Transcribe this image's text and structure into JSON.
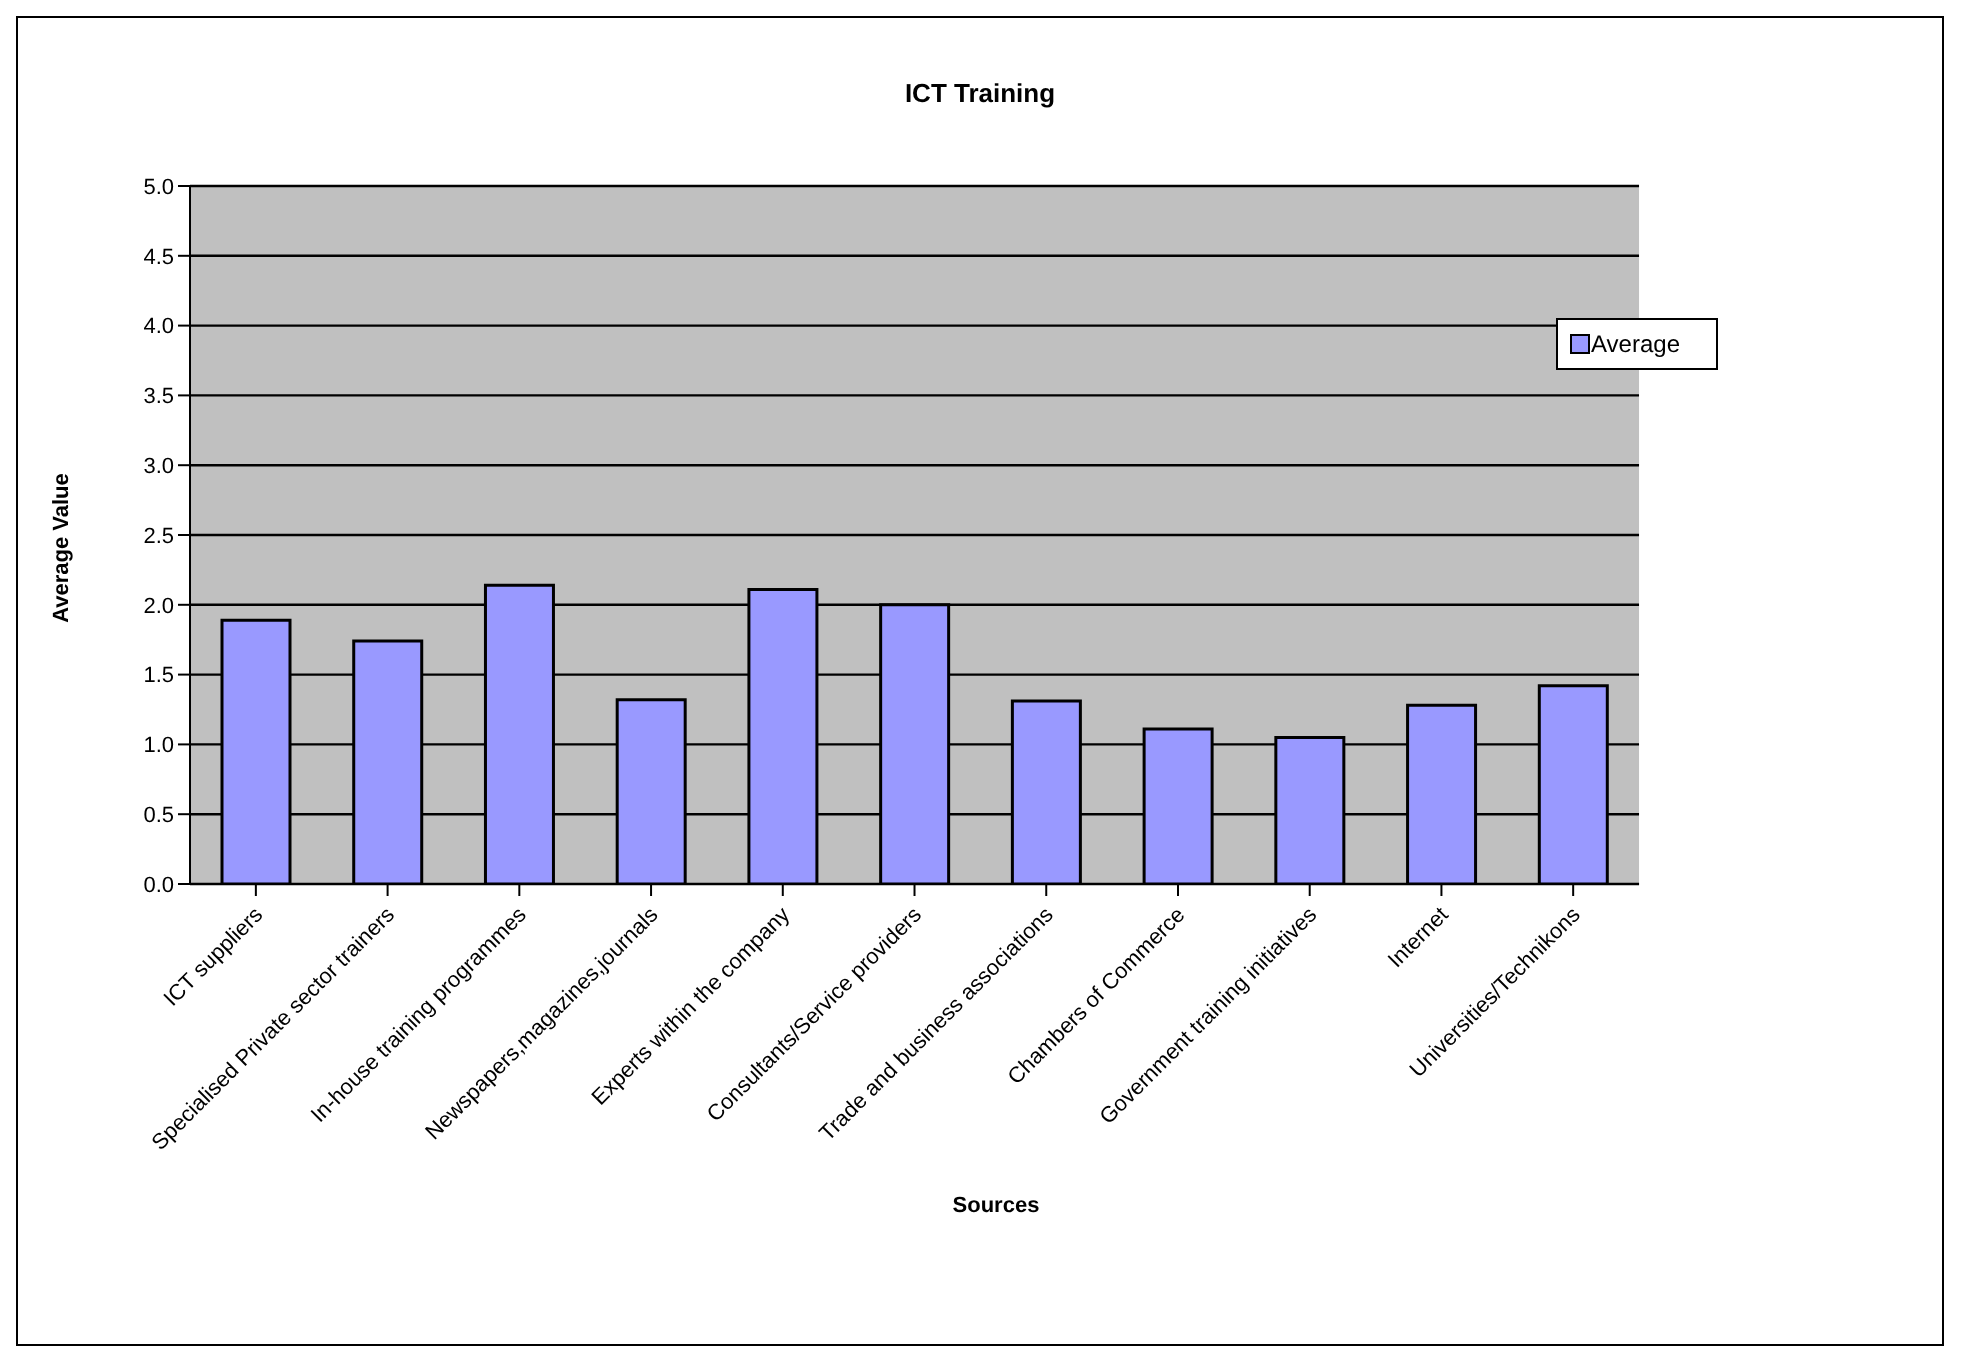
{
  "chart_data": {
    "type": "bar",
    "title": "ICT Training",
    "xlabel": "Sources",
    "ylabel": "Average Value",
    "categories": [
      "ICT suppliers",
      "Specialised Private sector trainers",
      "In-house training programmes",
      "Newspapers,magazines,journals",
      "Experts within the company",
      "Consultants/Service providers",
      "Trade and business associations",
      "Chambers of Commerce",
      "Government training initiatives",
      "Internet",
      "Universities/Technikons"
    ],
    "series": [
      {
        "name": "Average",
        "color": "#9999ff",
        "values": [
          1.89,
          1.74,
          2.14,
          1.32,
          2.11,
          2.0,
          1.31,
          1.11,
          1.05,
          1.28,
          1.42
        ]
      }
    ],
    "ylim": [
      0,
      5
    ],
    "yticks": [
      {
        "value": 0,
        "label": "0.0"
      },
      {
        "value": 0.5,
        "label": "0.5"
      },
      {
        "value": 1,
        "label": "1.0"
      },
      {
        "value": 1.5,
        "label": "1.5"
      },
      {
        "value": 2,
        "label": "2.0"
      },
      {
        "value": 2.5,
        "label": "2.5"
      },
      {
        "value": 3,
        "label": "3.0"
      },
      {
        "value": 3.5,
        "label": "3.5"
      },
      {
        "value": 4,
        "label": "4.0"
      },
      {
        "value": 4.5,
        "label": "4.5"
      },
      {
        "value": 5,
        "label": "5.0"
      }
    ],
    "grid": "y",
    "legend": "top right"
  }
}
